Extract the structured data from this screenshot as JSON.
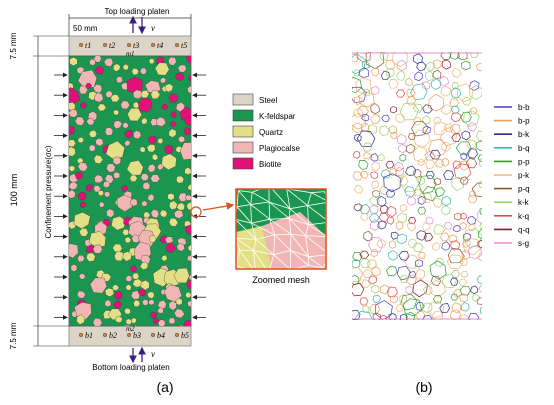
{
  "panel_a": {
    "label": "(a)",
    "top_platen_label": "Top loading platen",
    "bottom_platen_label": "Bottom loading platen",
    "width_label": "50 mm",
    "height_label": "100 mm",
    "platen_thickness_top": "7.5 mm",
    "platen_thickness_bottom": "7.5 mm",
    "confinement_label": "Confinement pressure(σc)",
    "velocity_symbol": "v",
    "top_markers": [
      "t1",
      "t2",
      "t3",
      "t4",
      "t5"
    ],
    "bottom_markers": [
      "b1",
      "b2",
      "b3",
      "b4",
      "b5"
    ],
    "top_center_mark": "m1",
    "bottom_center_mark": "m2",
    "zoom_caption": "Zoomed mesh",
    "legend": [
      {
        "label": "Steel",
        "color": "#ddd4c8"
      },
      {
        "label": "K-feldspar",
        "color": "#1a9650"
      },
      {
        "label": "Quartz",
        "color": "#e3df86"
      },
      {
        "label": "Plagiocalse",
        "color": "#f1b6b4"
      },
      {
        "label": "Biotite",
        "color": "#e0127a"
      }
    ]
  },
  "panel_b": {
    "label": "(b)",
    "legend": [
      {
        "label": "b-b",
        "color": "#4a3fc2"
      },
      {
        "label": "b-p",
        "color": "#f0a055"
      },
      {
        "label": "b-k",
        "color": "#2c2a8c"
      },
      {
        "label": "b-q",
        "color": "#35b8a8"
      },
      {
        "label": "p-p",
        "color": "#28a428"
      },
      {
        "label": "p-k",
        "color": "#f2b57a"
      },
      {
        "label": "p-q",
        "color": "#8a5a2a"
      },
      {
        "label": "k-k",
        "color": "#9cd36a"
      },
      {
        "label": "k-q",
        "color": "#e04a4a"
      },
      {
        "label": "q-q",
        "color": "#8b1a2a"
      },
      {
        "label": "s-g",
        "color": "#e889d0"
      }
    ]
  },
  "colors": {
    "arrow": "#3a2080",
    "mesh_line": "#ffffff",
    "zoom_frame": "#e05020"
  }
}
